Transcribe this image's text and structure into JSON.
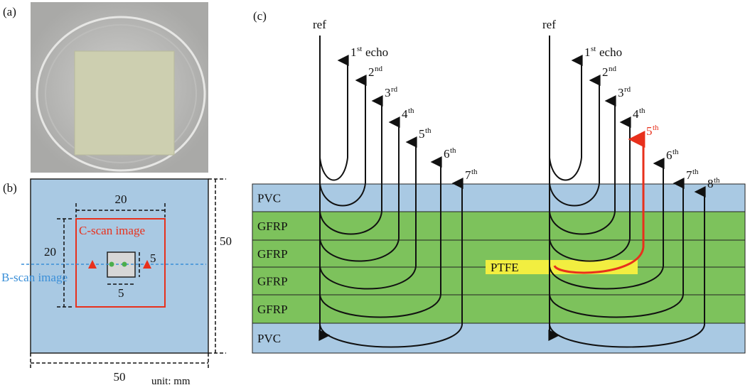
{
  "panels": {
    "a": "(a)",
    "b": "(b)",
    "c": "(c)"
  },
  "sample": {
    "width_label": "50",
    "height_label": "50",
    "cscan_width": "20",
    "cscan_height": "20",
    "defect_width": "5",
    "defect_height": "5",
    "cscan_label": "C-scan image",
    "bscan_label": "B-scan image",
    "unit": "unit: mm"
  },
  "layers": [
    "PVC",
    "GFRP",
    "GFRP",
    "GFRP",
    "GFRP",
    "PVC"
  ],
  "defect": "PTFE",
  "ref": "ref",
  "left_echoes": [
    {
      "n": "1",
      "sup": "st",
      "suffix": " echo"
    },
    {
      "n": "2",
      "sup": "nd"
    },
    {
      "n": "3",
      "sup": "rd"
    },
    {
      "n": "4",
      "sup": "th"
    },
    {
      "n": "5",
      "sup": "th"
    },
    {
      "n": "6",
      "sup": "th"
    },
    {
      "n": "7",
      "sup": "th"
    }
  ],
  "right_echoes": [
    {
      "n": "1",
      "sup": "st",
      "suffix": " echo"
    },
    {
      "n": "2",
      "sup": "nd"
    },
    {
      "n": "3",
      "sup": "rd"
    },
    {
      "n": "4",
      "sup": "th"
    },
    {
      "n": "5",
      "sup": "th"
    },
    {
      "n": "6",
      "sup": "th"
    },
    {
      "n": "7",
      "sup": "th"
    },
    {
      "n": "8",
      "sup": "th"
    }
  ]
}
